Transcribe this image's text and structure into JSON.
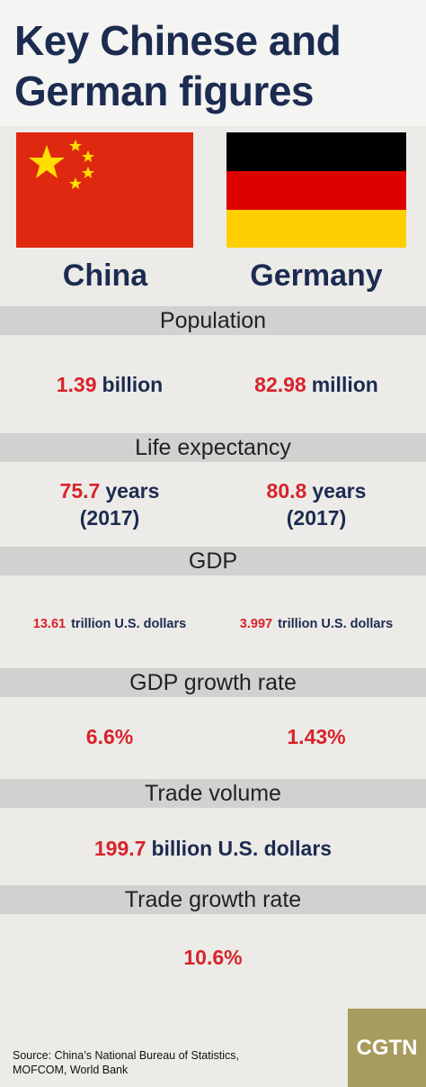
{
  "header": {
    "title_line1": "Key Chinese and",
    "title_line2": "German figures"
  },
  "countries": [
    "China",
    "Germany"
  ],
  "sections": [
    {
      "label": "Population",
      "values": [
        {
          "number": "1.39",
          "unit": "billion"
        },
        {
          "number": "82.98",
          "unit": "million"
        }
      ]
    },
    {
      "label": "Life expectancy",
      "values": [
        {
          "number": "75.7",
          "unit": "years",
          "note": "(2017)"
        },
        {
          "number": "80.8",
          "unit": "years",
          "note": "(2017)"
        }
      ]
    },
    {
      "label": "GDP",
      "values": [
        {
          "number": "13.61",
          "unit": "trillion U.S. dollars"
        },
        {
          "number": "3.997",
          "unit": "trillion U.S. dollars"
        }
      ]
    },
    {
      "label": "GDP growth rate",
      "values": [
        {
          "number": "6.6%"
        },
        {
          "number": "1.43%"
        }
      ]
    },
    {
      "label": "Trade volume",
      "values": [
        {
          "number": "199.7",
          "unit": "billion U.S. dollars"
        }
      ]
    },
    {
      "label": "Trade growth rate",
      "values": [
        {
          "number": "10.6%"
        }
      ]
    }
  ],
  "footer": {
    "source_line1": "Source: China’s National Bureau of Statistics,",
    "source_line2": "MOFCOM, World Bank",
    "logo": "CGTN"
  }
}
